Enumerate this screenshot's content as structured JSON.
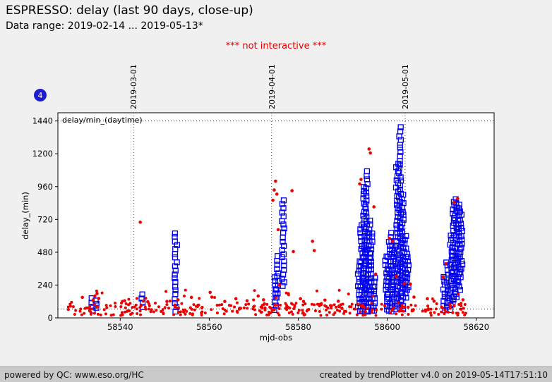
{
  "header": {
    "title": "ESPRESSO: delay (last 90 days, close-up)",
    "subtitle": "Data range: 2019-02-14 ... 2019-05-13*",
    "notice": "*** not interactive ***",
    "badge": "4"
  },
  "footer": {
    "left": "powered by QC: www.eso.org/HC",
    "right": "created by trendPlotter v4.0 on 2019-05-14T17:51:10"
  },
  "colors": {
    "page_bg": "#f0f0f0",
    "footer_bg": "#cacaca",
    "red": "#ee0000",
    "blue": "#0000ee",
    "badge_bg": "#1d1dcf",
    "notice": "#e80000"
  },
  "chart_data": {
    "type": "scatter",
    "title": "ESPRESSO: delay (last 90 days, close-up)",
    "xlabel": "mjd-obs",
    "ylabel": "delay_(min)",
    "xlim": [
      58526,
      58624
    ],
    "ylim": [
      0,
      1500
    ],
    "x_ticks": [
      58540,
      58560,
      58580,
      58600,
      58620
    ],
    "y_ticks": [
      0,
      240,
      480,
      720,
      960,
      1200,
      1440
    ],
    "grid": "off",
    "legend": "none",
    "month_lines": [
      {
        "mjd": 58543,
        "label": "2019-03-01"
      },
      {
        "mjd": 58574,
        "label": "2019-04-01"
      },
      {
        "mjd": 58604,
        "label": "2019-05-01"
      }
    ],
    "thresholds": [
      {
        "value": 1440,
        "label": "delay/min_(daytime)"
      },
      {
        "value": 65,
        "label": ""
      }
    ],
    "red_series": {
      "marker": "dot",
      "color": "#ee0000",
      "band": {
        "x_range": [
          58528,
          58618
        ],
        "y_range": [
          18,
          108
        ],
        "count": 320,
        "seed": 42
      },
      "upper_band": {
        "x_range": [
          58528,
          58618
        ],
        "y_range": [
          108,
          205
        ],
        "count": 28,
        "seed": 7
      },
      "outliers": [
        [
          58531.5,
          150
        ],
        [
          58533.9,
          128
        ],
        [
          58534.3,
          160
        ],
        [
          58534.8,
          178
        ],
        [
          58535.2,
          142
        ],
        [
          58541.0,
          125
        ],
        [
          58544.5,
          700
        ],
        [
          58546.2,
          118
        ],
        [
          58550.5,
          120
        ],
        [
          58553.0,
          132
        ],
        [
          58556.0,
          150
        ],
        [
          58560.2,
          186
        ],
        [
          58560.6,
          152
        ],
        [
          58563.5,
          120
        ],
        [
          58566.0,
          140
        ],
        [
          58568.5,
          125
        ],
        [
          58571.0,
          160
        ],
        [
          58572.2,
          132
        ],
        [
          58574.3,
          860
        ],
        [
          58574.6,
          935
        ],
        [
          58574.9,
          1000
        ],
        [
          58575.2,
          905
        ],
        [
          58575.5,
          645
        ],
        [
          58575.8,
          240
        ],
        [
          58578.6,
          930
        ],
        [
          58578.9,
          485
        ],
        [
          58580.5,
          140
        ],
        [
          58581.2,
          120
        ],
        [
          58583.2,
          560
        ],
        [
          58583.6,
          492
        ],
        [
          58586.0,
          130
        ],
        [
          58589.0,
          122
        ],
        [
          58593.8,
          980
        ],
        [
          58594.1,
          1012
        ],
        [
          58595.9,
          1235
        ],
        [
          58596.2,
          1206
        ],
        [
          58597.0,
          812
        ],
        [
          58597.4,
          320
        ],
        [
          58600.5,
          582
        ],
        [
          58601.2,
          560
        ],
        [
          58602.0,
          302
        ],
        [
          58603.8,
          250
        ],
        [
          58605.2,
          248
        ],
        [
          58606.0,
          152
        ],
        [
          58609.0,
          140
        ],
        [
          58610.5,
          122
        ],
        [
          58612.5,
          300
        ],
        [
          58613.2,
          395
        ],
        [
          58615.0,
          846
        ],
        [
          58615.8,
          872
        ],
        [
          58617.0,
          132
        ]
      ]
    },
    "blue_series": {
      "marker": "open-square",
      "color": "#0000ee",
      "stack_step": 30,
      "seed": 13,
      "columns": [
        [
          58533.8,
          55,
          165
        ],
        [
          58534.6,
          70,
          140
        ],
        [
          58545.0,
          80,
          185
        ],
        [
          58552.5,
          50,
          640
        ],
        [
          58574.8,
          55,
          300
        ],
        [
          58575.3,
          150,
          460
        ],
        [
          58576.6,
          230,
          860
        ],
        [
          58593.6,
          50,
          420
        ],
        [
          58594.2,
          50,
          700
        ],
        [
          58594.8,
          60,
          960
        ],
        [
          58595.3,
          50,
          1090
        ],
        [
          58595.9,
          50,
          730
        ],
        [
          58596.5,
          50,
          640
        ],
        [
          58597.1,
          50,
          300
        ],
        [
          58599.8,
          60,
          450
        ],
        [
          58600.4,
          50,
          560
        ],
        [
          58601.0,
          50,
          620
        ],
        [
          58601.6,
          60,
          520
        ],
        [
          58602.2,
          80,
          1150
        ],
        [
          58602.9,
          100,
          1390
        ],
        [
          58603.4,
          60,
          900
        ],
        [
          58604.0,
          150,
          600
        ],
        [
          58604.6,
          200,
          480
        ],
        [
          58612.8,
          60,
          310
        ],
        [
          58613.5,
          80,
          430
        ],
        [
          58614.3,
          60,
          620
        ],
        [
          58614.9,
          100,
          870
        ],
        [
          58615.5,
          150,
          880
        ],
        [
          58616.1,
          200,
          850
        ],
        [
          58616.6,
          300,
          780
        ]
      ]
    }
  }
}
